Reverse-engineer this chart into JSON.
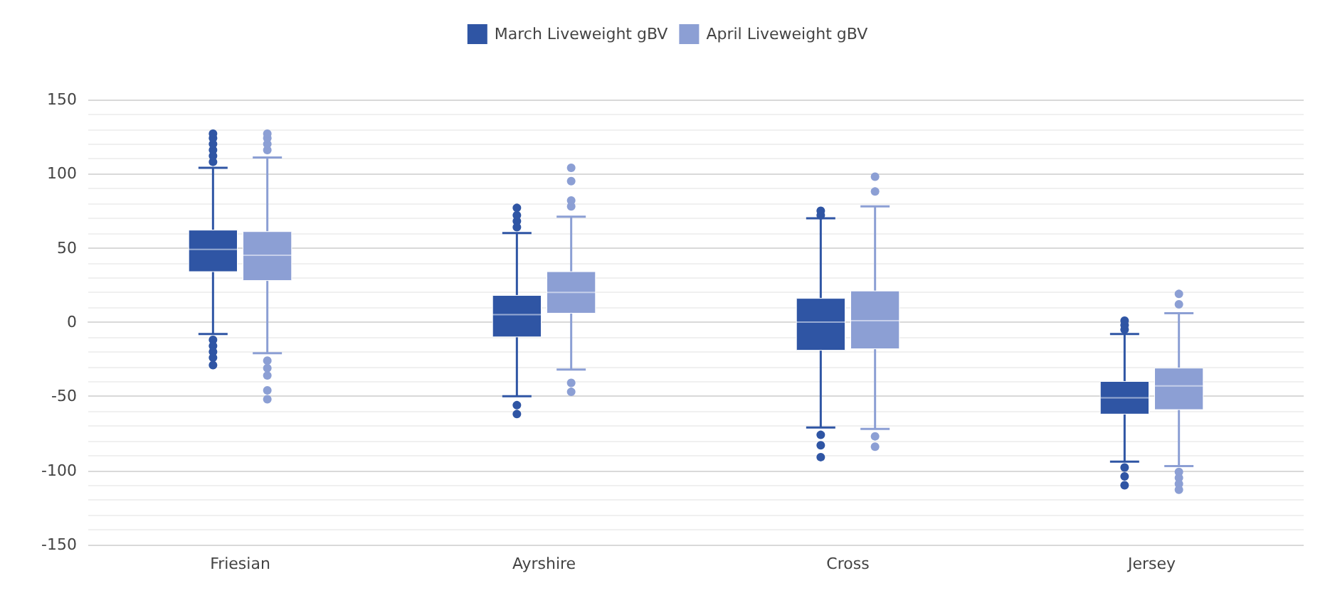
{
  "chart_data": {
    "type": "box",
    "categories": [
      "Friesian",
      "Ayrshire",
      "Cross",
      "Jersey"
    ],
    "series": [
      {
        "name": "March Liveweight gBV",
        "color": "#2f55a4",
        "boxes": [
          {
            "low": -8,
            "q1": 34,
            "median": 49,
            "q3": 62,
            "high": 104,
            "outliers": [
              108,
              112,
              116,
              120,
              124,
              127,
              -12,
              -16,
              -20,
              -24,
              -29
            ]
          },
          {
            "low": -50,
            "q1": -10,
            "median": 5,
            "q3": 18,
            "high": 60,
            "outliers": [
              64,
              68,
              72,
              77,
              -56,
              -62
            ]
          },
          {
            "low": -71,
            "q1": -19,
            "median": 0,
            "q3": 16,
            "high": 70,
            "outliers": [
              72,
              75,
              -76,
              -83,
              -91
            ]
          },
          {
            "low": -94,
            "q1": -62,
            "median": -51,
            "q3": -40,
            "high": -8,
            "outliers": [
              -5,
              -2,
              1,
              -98,
              -104,
              -110
            ]
          }
        ]
      },
      {
        "name": "April Liveweight gBV",
        "color": "#8c9fd4",
        "boxes": [
          {
            "low": -21,
            "q1": 28,
            "median": 45,
            "q3": 61,
            "high": 111,
            "outliers": [
              116,
              120,
              124,
              127,
              -26,
              -31,
              -36,
              -46,
              -52
            ]
          },
          {
            "low": -32,
            "q1": 6,
            "median": 20,
            "q3": 34,
            "high": 71,
            "outliers": [
              78,
              82,
              95,
              104,
              -41,
              -47
            ]
          },
          {
            "low": -72,
            "q1": -18,
            "median": 1,
            "q3": 21,
            "high": 78,
            "outliers": [
              88,
              98,
              -77,
              -84
            ]
          },
          {
            "low": -97,
            "q1": -59,
            "median": -43,
            "q3": -31,
            "high": 6,
            "outliers": [
              12,
              19,
              -101,
              -105,
              -109,
              -113
            ]
          }
        ]
      }
    ],
    "ylim": [
      -150,
      150
    ],
    "yticks": [
      -150,
      -100,
      -50,
      0,
      50,
      100,
      150
    ],
    "grid": true,
    "legend": "top"
  }
}
